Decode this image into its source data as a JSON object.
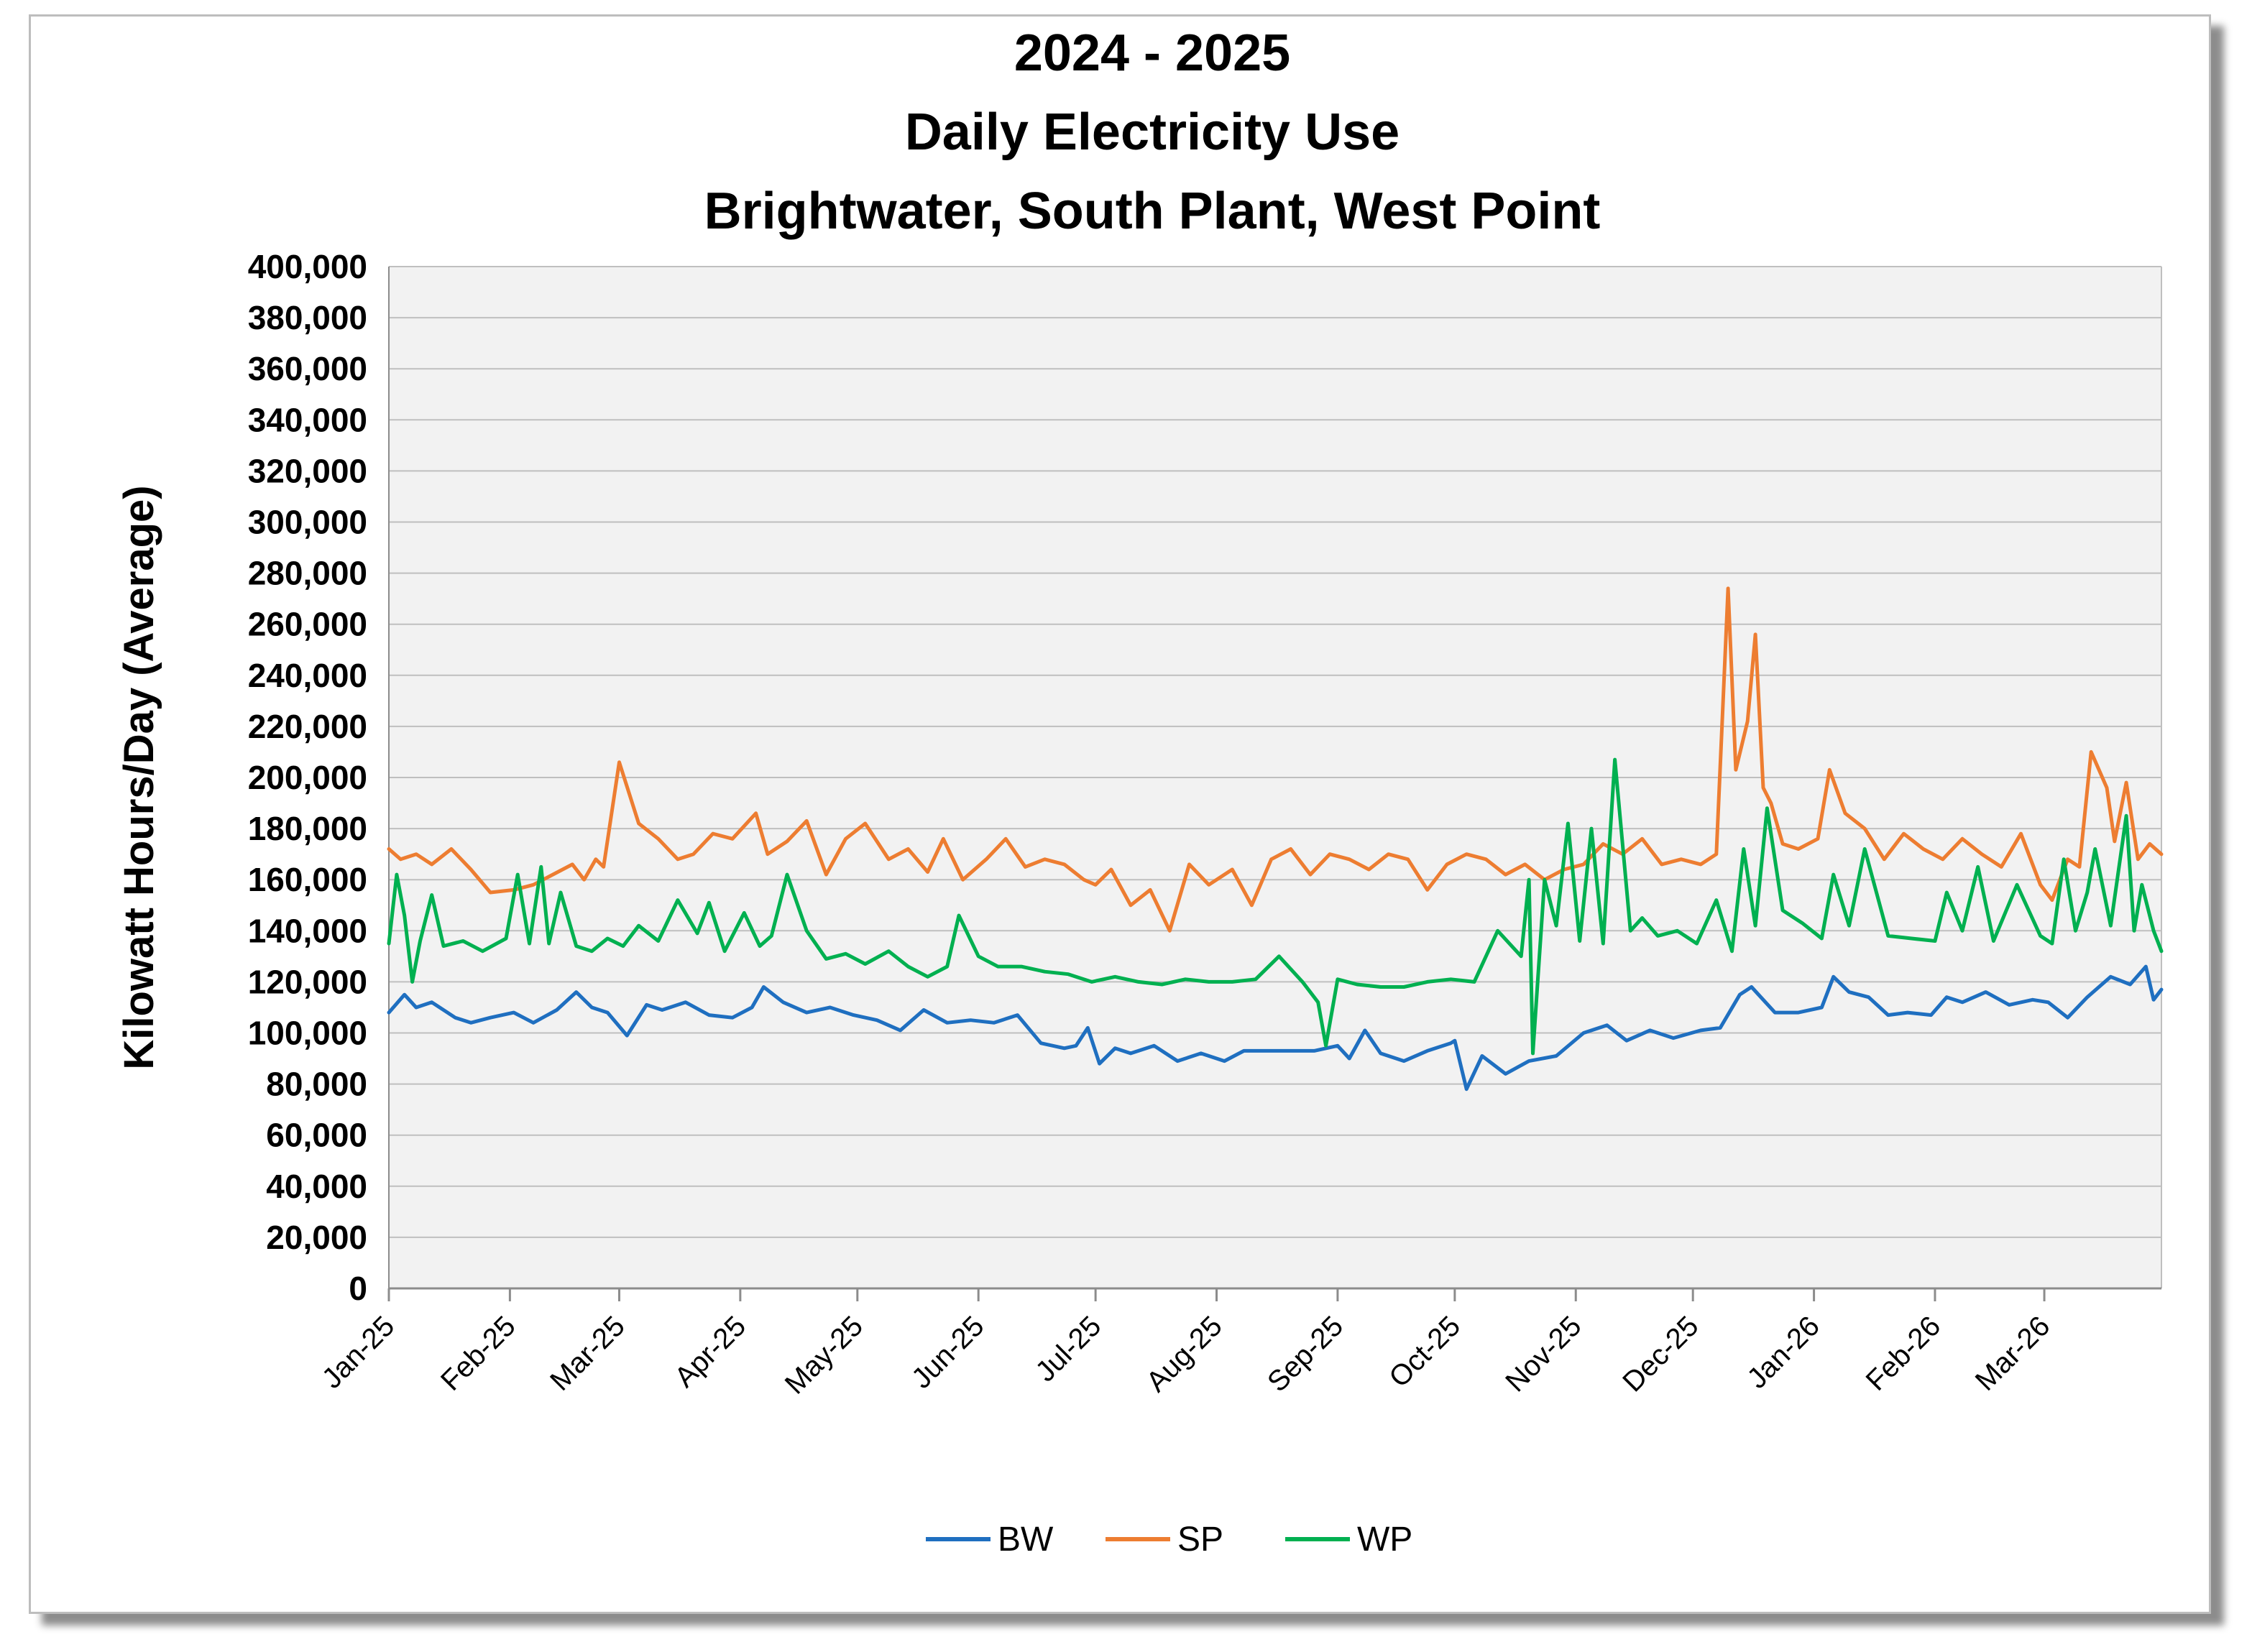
{
  "chart_data": {
    "type": "line",
    "title": [
      "2024 - 2025",
      "Daily Electricity Use",
      "Brightwater, South Plant, West Point"
    ],
    "ylabel": "Kilowatt Hours/Day (Average)",
    "xlabel": "",
    "ylim": [
      0,
      400000
    ],
    "y_ticks": [
      0,
      20000,
      40000,
      60000,
      80000,
      100000,
      120000,
      140000,
      160000,
      180000,
      200000,
      220000,
      240000,
      260000,
      280000,
      300000,
      320000,
      340000,
      360000,
      380000,
      400000
    ],
    "y_tick_labels": [
      "0",
      "20,000",
      "40,000",
      "60,000",
      "80,000",
      "100,000",
      "120,000",
      "140,000",
      "160,000",
      "180,000",
      "200,000",
      "220,000",
      "240,000",
      "260,000",
      "280,000",
      "300,000",
      "320,000",
      "340,000",
      "360,000",
      "380,000",
      "400,000"
    ],
    "x_range": [
      "2025-01-01",
      "2026-03-31"
    ],
    "x_tick_dates": [
      "2025-01-01",
      "2025-02-01",
      "2025-03-01",
      "2025-04-01",
      "2025-05-01",
      "2025-06-01",
      "2025-07-01",
      "2025-08-01",
      "2025-09-01",
      "2025-10-01",
      "2025-11-01",
      "2025-12-01",
      "2026-01-01",
      "2026-02-01",
      "2026-03-01"
    ],
    "x_tick_labels": [
      "Jan-25",
      "Feb-25",
      "Mar-25",
      "Apr-25",
      "May-25",
      "Jun-25",
      "Jul-25",
      "Aug-25",
      "Sep-25",
      "Oct-25",
      "Nov-25",
      "Dec-25",
      "Jan-26",
      "Feb-26",
      "Mar-26"
    ],
    "grid": true,
    "legend": "bottom",
    "plot_background": "#f2f2f2",
    "series": [
      {
        "name": "BW",
        "color": "#1f6fc0",
        "x": [
          "2025-01-01",
          "2025-01-05",
          "2025-01-08",
          "2025-01-12",
          "2025-01-18",
          "2025-01-22",
          "2025-01-27",
          "2025-02-02",
          "2025-02-07",
          "2025-02-13",
          "2025-02-18",
          "2025-02-22",
          "2025-02-26",
          "2025-03-03",
          "2025-03-08",
          "2025-03-12",
          "2025-03-18",
          "2025-03-24",
          "2025-03-30",
          "2025-04-04",
          "2025-04-07",
          "2025-04-12",
          "2025-04-18",
          "2025-04-24",
          "2025-04-30",
          "2025-05-06",
          "2025-05-12",
          "2025-05-18",
          "2025-05-24",
          "2025-05-30",
          "2025-06-05",
          "2025-06-11",
          "2025-06-17",
          "2025-06-23",
          "2025-06-26",
          "2025-06-29",
          "2025-07-02",
          "2025-07-06",
          "2025-07-10",
          "2025-07-16",
          "2025-07-22",
          "2025-07-28",
          "2025-08-03",
          "2025-08-08",
          "2025-08-14",
          "2025-08-20",
          "2025-08-26",
          "2025-09-01",
          "2025-09-04",
          "2025-09-08",
          "2025-09-12",
          "2025-09-18",
          "2025-09-24",
          "2025-09-30",
          "2025-10-01",
          "2025-10-04",
          "2025-10-08",
          "2025-10-14",
          "2025-10-20",
          "2025-10-27",
          "2025-11-03",
          "2025-11-09",
          "2025-11-14",
          "2025-11-20",
          "2025-11-26",
          "2025-12-03",
          "2025-12-08",
          "2025-12-13",
          "2025-12-16",
          "2025-12-22",
          "2025-12-28",
          "2026-01-03",
          "2026-01-06",
          "2026-01-10",
          "2026-01-15",
          "2026-01-20",
          "2026-01-25",
          "2026-01-31",
          "2026-02-04",
          "2026-02-08",
          "2026-02-14",
          "2026-02-20",
          "2026-02-26",
          "2026-03-02",
          "2026-03-07",
          "2026-03-12",
          "2026-03-18",
          "2026-03-23",
          "2026-03-27",
          "2026-03-29",
          "2026-03-31"
        ],
        "values": [
          108000,
          115000,
          110000,
          112000,
          106000,
          104000,
          106000,
          108000,
          104000,
          109000,
          116000,
          110000,
          108000,
          99000,
          111000,
          109000,
          112000,
          107000,
          106000,
          110000,
          118000,
          112000,
          108000,
          110000,
          107000,
          105000,
          101000,
          109000,
          104000,
          105000,
          104000,
          107000,
          96000,
          94000,
          95000,
          102000,
          88000,
          94000,
          92000,
          95000,
          89000,
          92000,
          89000,
          93000,
          93000,
          93000,
          93000,
          95000,
          90000,
          101000,
          92000,
          89000,
          93000,
          96000,
          97000,
          78000,
          91000,
          84000,
          89000,
          91000,
          100000,
          103000,
          97000,
          101000,
          98000,
          101000,
          102000,
          115000,
          118000,
          108000,
          108000,
          110000,
          122000,
          116000,
          114000,
          107000,
          108000,
          107000,
          114000,
          112000,
          116000,
          111000,
          113000,
          112000,
          106000,
          114000,
          122000,
          119000,
          126000,
          113000,
          117000
        ]
      },
      {
        "name": "SP",
        "color": "#ed7d31",
        "x": [
          "2025-01-01",
          "2025-01-04",
          "2025-01-08",
          "2025-01-12",
          "2025-01-17",
          "2025-01-22",
          "2025-01-27",
          "2025-02-02",
          "2025-02-07",
          "2025-02-12",
          "2025-02-17",
          "2025-02-20",
          "2025-02-23",
          "2025-02-25",
          "2025-03-01",
          "2025-03-06",
          "2025-03-11",
          "2025-03-16",
          "2025-03-20",
          "2025-03-25",
          "2025-03-30",
          "2025-04-05",
          "2025-04-08",
          "2025-04-13",
          "2025-04-18",
          "2025-04-23",
          "2025-04-28",
          "2025-05-03",
          "2025-05-09",
          "2025-05-14",
          "2025-05-19",
          "2025-05-23",
          "2025-05-28",
          "2025-06-03",
          "2025-06-08",
          "2025-06-13",
          "2025-06-18",
          "2025-06-23",
          "2025-06-28",
          "2025-07-01",
          "2025-07-05",
          "2025-07-10",
          "2025-07-15",
          "2025-07-20",
          "2025-07-25",
          "2025-07-30",
          "2025-08-05",
          "2025-08-10",
          "2025-08-15",
          "2025-08-20",
          "2025-08-25",
          "2025-08-30",
          "2025-09-04",
          "2025-09-09",
          "2025-09-14",
          "2025-09-19",
          "2025-09-24",
          "2025-09-29",
          "2025-10-04",
          "2025-10-09",
          "2025-10-14",
          "2025-10-19",
          "2025-10-24",
          "2025-10-29",
          "2025-11-03",
          "2025-11-08",
          "2025-11-13",
          "2025-11-18",
          "2025-11-23",
          "2025-11-28",
          "2025-12-03",
          "2025-12-07",
          "2025-12-10",
          "2025-12-12",
          "2025-12-15",
          "2025-12-17",
          "2025-12-19",
          "2025-12-21",
          "2025-12-24",
          "2025-12-28",
          "2026-01-02",
          "2026-01-05",
          "2026-01-09",
          "2026-01-14",
          "2026-01-19",
          "2026-01-24",
          "2026-01-29",
          "2026-02-03",
          "2026-02-08",
          "2026-02-13",
          "2026-02-18",
          "2026-02-23",
          "2026-02-28",
          "2026-03-03",
          "2026-03-07",
          "2026-03-10",
          "2026-03-13",
          "2026-03-17",
          "2026-03-19",
          "2026-03-22",
          "2026-03-25",
          "2026-03-28",
          "2026-03-31"
        ],
        "values": [
          172000,
          168000,
          170000,
          166000,
          172000,
          164000,
          155000,
          156000,
          158000,
          162000,
          166000,
          160000,
          168000,
          165000,
          206000,
          182000,
          176000,
          168000,
          170000,
          178000,
          176000,
          186000,
          170000,
          175000,
          183000,
          162000,
          176000,
          182000,
          168000,
          172000,
          163000,
          176000,
          160000,
          168000,
          176000,
          165000,
          168000,
          166000,
          160000,
          158000,
          164000,
          150000,
          156000,
          140000,
          166000,
          158000,
          164000,
          150000,
          168000,
          172000,
          162000,
          170000,
          168000,
          164000,
          170000,
          168000,
          156000,
          166000,
          170000,
          168000,
          162000,
          166000,
          160000,
          164000,
          166000,
          174000,
          170000,
          176000,
          166000,
          168000,
          166000,
          170000,
          274000,
          203000,
          222000,
          256000,
          196000,
          190000,
          174000,
          172000,
          176000,
          203000,
          186000,
          180000,
          168000,
          178000,
          172000,
          168000,
          176000,
          170000,
          165000,
          178000,
          158000,
          152000,
          168000,
          165000,
          210000,
          196000,
          175000,
          198000,
          168000,
          174000,
          170000
        ]
      },
      {
        "name": "WP",
        "color": "#00b050",
        "x": [
          "2025-01-01",
          "2025-01-03",
          "2025-01-05",
          "2025-01-07",
          "2025-01-09",
          "2025-01-12",
          "2025-01-15",
          "2025-01-20",
          "2025-01-25",
          "2025-01-31",
          "2025-02-03",
          "2025-02-06",
          "2025-02-09",
          "2025-02-11",
          "2025-02-14",
          "2025-02-18",
          "2025-02-22",
          "2025-02-26",
          "2025-03-02",
          "2025-03-06",
          "2025-03-11",
          "2025-03-16",
          "2025-03-21",
          "2025-03-24",
          "2025-03-28",
          "2025-04-02",
          "2025-04-06",
          "2025-04-09",
          "2025-04-13",
          "2025-04-18",
          "2025-04-23",
          "2025-04-28",
          "2025-05-03",
          "2025-05-09",
          "2025-05-14",
          "2025-05-19",
          "2025-05-24",
          "2025-05-27",
          "2025-06-01",
          "2025-06-06",
          "2025-06-12",
          "2025-06-18",
          "2025-06-24",
          "2025-06-30",
          "2025-07-06",
          "2025-07-12",
          "2025-07-18",
          "2025-07-24",
          "2025-07-30",
          "2025-08-05",
          "2025-08-11",
          "2025-08-17",
          "2025-08-23",
          "2025-08-27",
          "2025-08-29",
          "2025-09-01",
          "2025-09-06",
          "2025-09-12",
          "2025-09-18",
          "2025-09-24",
          "2025-09-30",
          "2025-10-06",
          "2025-10-12",
          "2025-10-18",
          "2025-10-20",
          "2025-10-21",
          "2025-10-24",
          "2025-10-27",
          "2025-10-30",
          "2025-11-02",
          "2025-11-05",
          "2025-11-08",
          "2025-11-11",
          "2025-11-15",
          "2025-11-18",
          "2025-11-22",
          "2025-11-27",
          "2025-12-02",
          "2025-12-07",
          "2025-12-11",
          "2025-12-14",
          "2025-12-17",
          "2025-12-20",
          "2025-12-24",
          "2025-12-29",
          "2026-01-03",
          "2026-01-06",
          "2026-01-10",
          "2026-01-14",
          "2026-01-20",
          "2026-01-26",
          "2026-02-01",
          "2026-02-04",
          "2026-02-08",
          "2026-02-12",
          "2026-02-16",
          "2026-02-22",
          "2026-02-28",
          "2026-03-03",
          "2026-03-06",
          "2026-03-09",
          "2026-03-12",
          "2026-03-14",
          "2026-03-18",
          "2026-03-22",
          "2026-03-24",
          "2026-03-26",
          "2026-03-29",
          "2026-03-31"
        ],
        "values": [
          135000,
          162000,
          146000,
          120000,
          136000,
          154000,
          134000,
          136000,
          132000,
          137000,
          162000,
          135000,
          165000,
          135000,
          155000,
          134000,
          132000,
          137000,
          134000,
          142000,
          136000,
          152000,
          139000,
          151000,
          132000,
          147000,
          134000,
          138000,
          162000,
          140000,
          129000,
          131000,
          127000,
          132000,
          126000,
          122000,
          126000,
          146000,
          130000,
          126000,
          126000,
          124000,
          123000,
          120000,
          122000,
          120000,
          119000,
          121000,
          120000,
          120000,
          121000,
          130000,
          120000,
          112000,
          95000,
          121000,
          119000,
          118000,
          118000,
          120000,
          121000,
          120000,
          140000,
          130000,
          160000,
          92000,
          160000,
          142000,
          182000,
          136000,
          180000,
          135000,
          207000,
          140000,
          145000,
          138000,
          140000,
          135000,
          152000,
          132000,
          172000,
          142000,
          188000,
          148000,
          143000,
          137000,
          162000,
          142000,
          172000,
          138000,
          137000,
          136000,
          155000,
          140000,
          165000,
          136000,
          158000,
          138000,
          135000,
          168000,
          140000,
          155000,
          172000,
          142000,
          185000,
          140000,
          158000,
          140000,
          132000
        ]
      }
    ]
  }
}
